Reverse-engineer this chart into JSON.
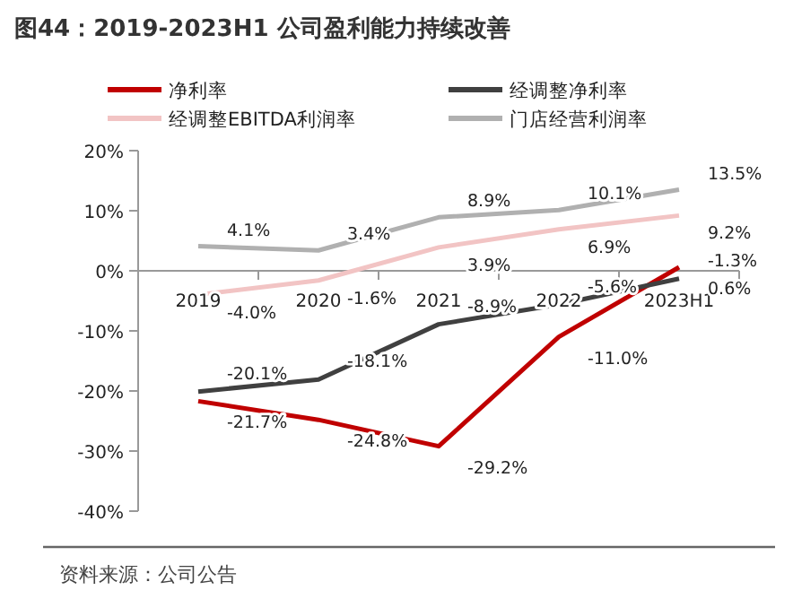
{
  "chart_data": {
    "type": "line",
    "title": "图44：2019-2023H1 公司盈利能力持续改善",
    "categories": [
      "2019",
      "2020",
      "2021",
      "2022",
      "2023H1"
    ],
    "series": [
      {
        "name": "净利率",
        "color": "#c00000",
        "values": [
          -21.7,
          -24.8,
          -29.2,
          -11.0,
          0.6
        ],
        "value_labels": [
          "-21.7%",
          "-24.8%",
          "-29.2%",
          "-11.0%",
          "0.6%"
        ]
      },
      {
        "name": "经调整净利率",
        "color": "#404040",
        "values": [
          -20.1,
          -18.1,
          -8.9,
          -5.6,
          -1.3
        ],
        "value_labels": [
          "-20.1%",
          "-18.1%",
          "-8.9%",
          "-5.6%",
          "-1.3%"
        ]
      },
      {
        "name": "经调整EBITDA利润率",
        "color": "#f2c4c4",
        "values": [
          -4.0,
          -1.6,
          3.9,
          6.9,
          9.2
        ],
        "value_labels": [
          "-4.0%",
          "-1.6%",
          "3.9%",
          "6.9%",
          "9.2%"
        ]
      },
      {
        "name": "门店经营利润率",
        "color": "#b0b0b0",
        "values": [
          4.1,
          3.4,
          8.9,
          10.1,
          13.5
        ],
        "value_labels": [
          "4.1%",
          "3.4%",
          "8.9%",
          "10.1%",
          "13.5%"
        ]
      }
    ],
    "ylim": [
      -40,
      20
    ],
    "yticks": [
      {
        "value": 20,
        "label": "20%"
      },
      {
        "value": 10,
        "label": "10%"
      },
      {
        "value": 0,
        "label": "0%"
      },
      {
        "value": -10,
        "label": "-10%"
      },
      {
        "value": -20,
        "label": "-20%"
      },
      {
        "value": -30,
        "label": "-30%"
      },
      {
        "value": -40,
        "label": "-40%"
      }
    ],
    "legend": "top",
    "annotations": [
      "资料来源：公司公告"
    ]
  }
}
